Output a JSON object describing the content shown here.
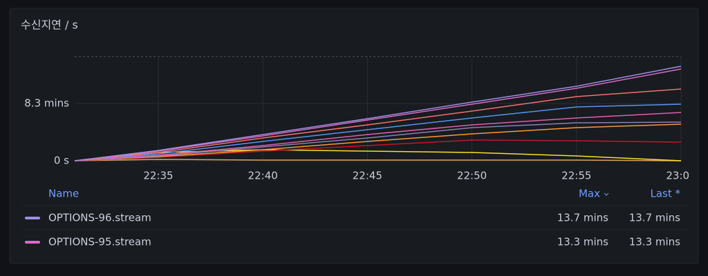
{
  "chart_data": {
    "type": "line",
    "title": "수신지연 / s",
    "x": [
      "22:31",
      "22:35",
      "22:40",
      "22:45",
      "22:50",
      "22:55",
      "23:00"
    ],
    "xlim": [
      "22:31",
      "23:00"
    ],
    "xticks": [
      "22:35",
      "22:40",
      "22:45",
      "22:50",
      "22:55",
      "23:00"
    ],
    "ylim": [
      0,
      15.1
    ],
    "yticks": [
      {
        "value": 0,
        "label": "0 s"
      },
      {
        "value": 8.3,
        "label": "8.3 mins"
      }
    ],
    "grid": true,
    "legend_headers": [
      "Name",
      "Max",
      "Last *"
    ],
    "series": [
      {
        "name": "OPTIONS-96.stream",
        "color": "#9f8fe6",
        "values": [
          0,
          1.5,
          3.8,
          6.1,
          8.5,
          10.8,
          13.7
        ],
        "max": 13.7,
        "max_label": "13.7 mins",
        "last": 13.7,
        "last_label": "13.7 mins"
      },
      {
        "name": "OPTIONS-95.stream",
        "color": "#d96bc7",
        "values": [
          0,
          1.4,
          3.6,
          5.9,
          8.2,
          10.5,
          13.3
        ],
        "max": 13.3,
        "max_label": "13.3 mins",
        "last": 13.3,
        "last_label": "13.3 mins"
      },
      {
        "color": "#f2726f",
        "values": [
          0,
          1.2,
          3.3,
          5.2,
          7.2,
          9.3,
          10.4
        ]
      },
      {
        "color": "#5794f2",
        "values": [
          0,
          1,
          2.8,
          4.5,
          6.2,
          7.8,
          8.2
        ]
      },
      {
        "color": "#e05fb0",
        "values": [
          0,
          0.8,
          2.2,
          3.8,
          5.2,
          6.2,
          7
        ]
      },
      {
        "color": "#8a7fb8",
        "values": [
          0,
          0.7,
          2,
          3.3,
          4.8,
          5.5,
          5.6
        ]
      },
      {
        "color": "#ff9830",
        "values": [
          0,
          0.6,
          1.6,
          2.8,
          3.9,
          4.8,
          5.3
        ]
      },
      {
        "color": "#c4162a",
        "values": [
          0,
          0.5,
          1.4,
          2.2,
          3,
          2.9,
          2.7
        ]
      },
      {
        "color": "#fade2a",
        "values": [
          0,
          1.2,
          1.6,
          1.4,
          1.2,
          0.7,
          0
        ]
      },
      {
        "color": "#e0a050",
        "values": [
          0,
          0.2,
          0.1,
          0.1,
          0.1,
          0.1,
          0
        ]
      }
    ]
  }
}
